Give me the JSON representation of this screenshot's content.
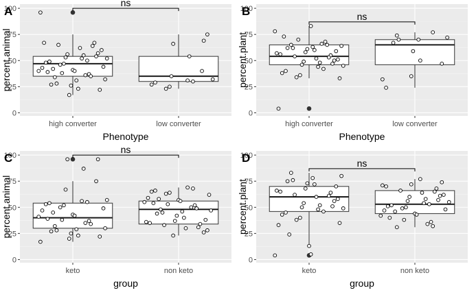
{
  "chart_data": [
    {
      "tag": "A",
      "type": "boxplot",
      "xlabel": "Phenotype",
      "ylabel": "percent.animal",
      "ylim": [
        -3,
        104
      ],
      "yticks": [
        0,
        25,
        50,
        75,
        100
      ],
      "categories": [
        "high converter",
        "low converter"
      ],
      "boxes": [
        {
          "group": "high converter",
          "q1": 35,
          "median": 47,
          "q3": 54,
          "whisker_low": 17,
          "whisker_high": 75,
          "outliers": [
            96
          ]
        },
        {
          "group": "low converter",
          "q1": 30,
          "median": 35,
          "q3": 54,
          "whisker_low": 23,
          "whisker_high": 75,
          "outliers": []
        }
      ],
      "points": [
        {
          "group": "high converter",
          "values": [
            96,
            67,
            67,
            65,
            64,
            62,
            60,
            57,
            56,
            55,
            54,
            53,
            52,
            52,
            50,
            49,
            48,
            47,
            46,
            44,
            43,
            42,
            41,
            40,
            40,
            39,
            38,
            37,
            36,
            35,
            34,
            32,
            31,
            28,
            27,
            26,
            23,
            22,
            17
          ]
        },
        {
          "group": "low converter",
          "values": [
            75,
            69,
            66,
            54,
            40,
            35,
            32,
            31,
            30,
            29,
            27,
            25,
            23
          ]
        }
      ],
      "significance": {
        "label": "ns",
        "y": 100
      }
    },
    {
      "tag": "B",
      "type": "boxplot",
      "xlabel": "Phenotype",
      "ylabel": "percent.plant",
      "ylim": [
        -3,
        104
      ],
      "yticks": [
        0,
        25,
        50,
        75,
        100
      ],
      "categories": [
        "high converter",
        "low converter"
      ],
      "boxes": [
        {
          "group": "high converter",
          "q1": 46,
          "median": 54,
          "q3": 65,
          "whisker_low": 33,
          "whisker_high": 83,
          "outliers": [
            4
          ]
        },
        {
          "group": "low converter",
          "q1": 46,
          "median": 65,
          "q3": 70,
          "whisker_low": 24,
          "whisker_high": 77,
          "outliers": []
        }
      ],
      "points": [
        {
          "group": "high converter",
          "values": [
            83,
            78,
            73,
            70,
            68,
            66,
            65,
            65,
            64,
            63,
            62,
            62,
            61,
            60,
            59,
            58,
            57,
            56,
            55,
            54,
            53,
            52,
            51,
            50,
            49,
            48,
            47,
            46,
            45,
            44,
            42,
            40,
            38,
            36,
            34,
            33,
            4
          ]
        },
        {
          "group": "low converter",
          "values": [
            77,
            74,
            72,
            70,
            70,
            67,
            59,
            50,
            47,
            35,
            32,
            24
          ]
        }
      ],
      "significance": {
        "label": "ns",
        "y": 87
      }
    },
    {
      "tag": "C",
      "type": "boxplot",
      "xlabel": "group",
      "ylabel": "percent.animal",
      "ylim": [
        -3,
        104
      ],
      "yticks": [
        0,
        25,
        50,
        75,
        100
      ],
      "categories": [
        "keto",
        "non keto"
      ],
      "boxes": [
        {
          "group": "keto",
          "q1": 30,
          "median": 40,
          "q3": 54,
          "whisker_low": 17,
          "whisker_high": 75,
          "outliers": [
            96
          ]
        },
        {
          "group": "non keto",
          "q1": 34,
          "median": 48,
          "q3": 56,
          "whisker_low": 23,
          "whisker_high": 69,
          "outliers": []
        }
      ],
      "points": [
        {
          "group": "keto",
          "values": [
            96,
            96,
            87,
            75,
            67,
            57,
            56,
            55,
            54,
            53,
            52,
            50,
            49,
            47,
            45,
            43,
            42,
            41,
            39,
            38,
            37,
            35,
            34,
            32,
            30,
            29,
            28,
            27,
            25,
            23,
            22,
            20,
            17
          ]
        },
        {
          "group": "non keto",
          "values": [
            69,
            68,
            66,
            65,
            64,
            63,
            62,
            59,
            58,
            57,
            56,
            55,
            54,
            53,
            52,
            50,
            49,
            48,
            47,
            46,
            45,
            44,
            42,
            40,
            38,
            37,
            36,
            35,
            34,
            33,
            31,
            30,
            28,
            26,
            23
          ]
        }
      ],
      "significance": {
        "label": "ns",
        "y": 100
      }
    },
    {
      "tag": "D",
      "type": "boxplot",
      "xlabel": "group",
      "ylabel": "percent.plant",
      "ylim": [
        -3,
        104
      ],
      "yticks": [
        0,
        25,
        50,
        75,
        100
      ],
      "categories": [
        "keto",
        "non keto"
      ],
      "boxes": [
        {
          "group": "keto",
          "q1": 46,
          "median": 60,
          "q3": 70,
          "whisker_low": 13,
          "whisker_high": 83,
          "outliers": [
            4
          ]
        },
        {
          "group": "non keto",
          "q1": 44,
          "median": 53,
          "q3": 66,
          "whisker_low": 31,
          "whisker_high": 77,
          "outliers": []
        }
      ],
      "points": [
        {
          "group": "keto",
          "values": [
            83,
            80,
            78,
            76,
            75,
            73,
            72,
            70,
            68,
            66,
            65,
            64,
            62,
            61,
            60,
            58,
            56,
            54,
            52,
            51,
            50,
            49,
            48,
            46,
            45,
            43,
            40,
            38,
            35,
            33,
            24,
            13,
            5,
            4
          ]
        },
        {
          "group": "non keto",
          "values": [
            77,
            74,
            72,
            71,
            70,
            68,
            66,
            65,
            64,
            62,
            61,
            60,
            58,
            57,
            56,
            55,
            54,
            53,
            52,
            51,
            50,
            49,
            48,
            47,
            46,
            44,
            43,
            42,
            40,
            38,
            36,
            34,
            32,
            31
          ]
        }
      ],
      "significance": {
        "label": "ns",
        "y": 87
      }
    }
  ]
}
